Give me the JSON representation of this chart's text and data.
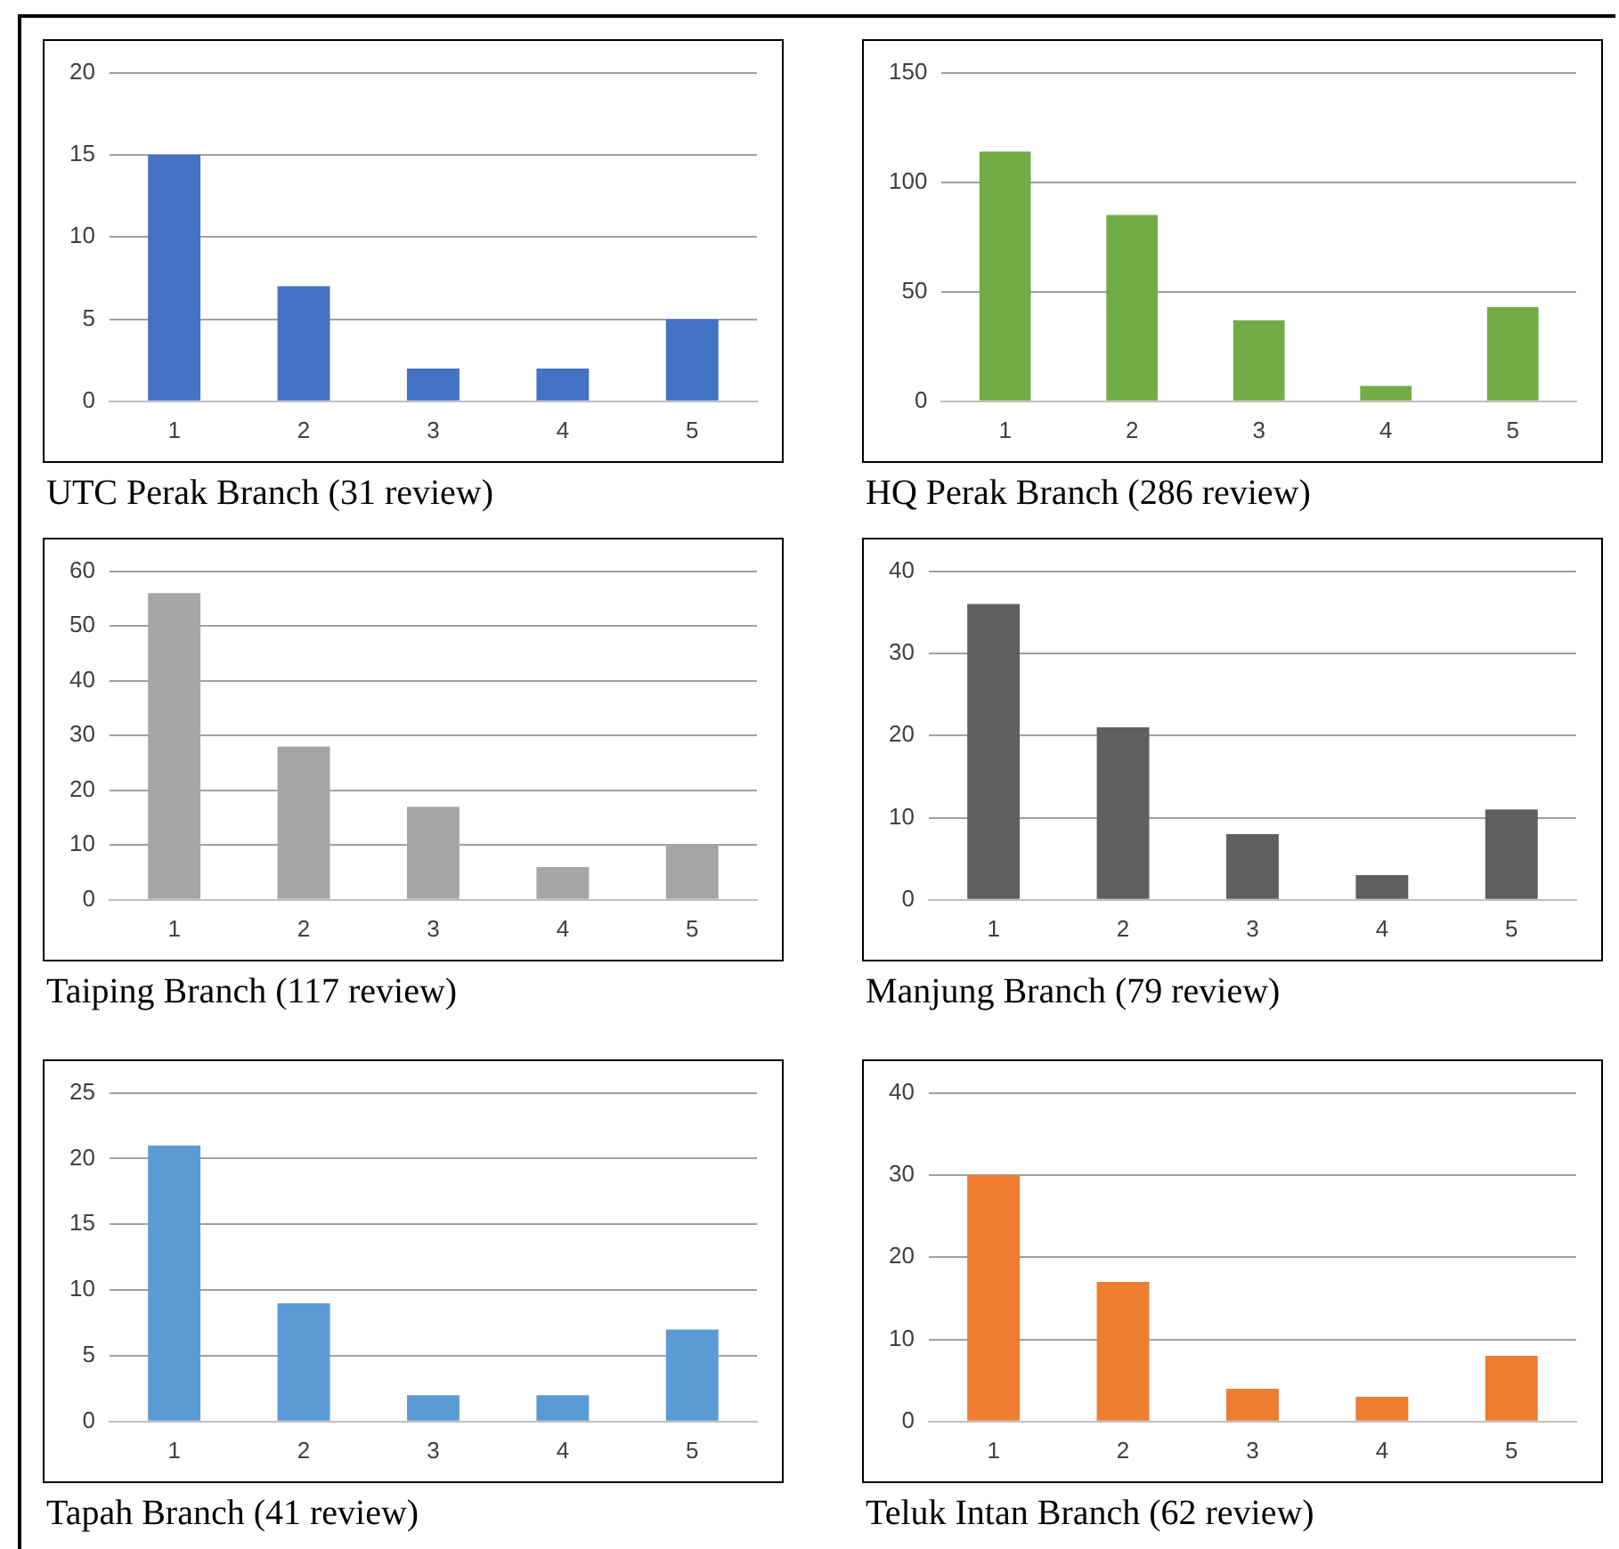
{
  "chart_data": [
    {
      "type": "bar",
      "title": "UTC Perak Branch (31 review)",
      "categories": [
        "1",
        "2",
        "3",
        "4",
        "5"
      ],
      "values": [
        15,
        7,
        2,
        2,
        5
      ],
      "color": "#4472c4",
      "ylim": [
        0,
        20
      ],
      "yticks": [
        0,
        5,
        10,
        15,
        20
      ],
      "grid": "y",
      "legend": false
    },
    {
      "type": "bar",
      "title": "HQ Perak Branch (286 review)",
      "categories": [
        "1",
        "2",
        "3",
        "4",
        "5"
      ],
      "values": [
        114,
        85,
        37,
        7,
        43
      ],
      "color": "#70ad47",
      "ylim": [
        0,
        150
      ],
      "yticks": [
        0,
        50,
        100,
        150
      ],
      "grid": "y",
      "legend": false
    },
    {
      "type": "bar",
      "title": "Taiping Branch (117 review)",
      "categories": [
        "1",
        "2",
        "3",
        "4",
        "5"
      ],
      "values": [
        56,
        28,
        17,
        6,
        10
      ],
      "color": "#a5a5a5",
      "ylim": [
        0,
        60
      ],
      "yticks": [
        0,
        10,
        20,
        30,
        40,
        50,
        60
      ],
      "grid": "y",
      "legend": false
    },
    {
      "type": "bar",
      "title": "Manjung Branch (79 review)",
      "categories": [
        "1",
        "2",
        "3",
        "4",
        "5"
      ],
      "values": [
        36,
        21,
        8,
        3,
        11
      ],
      "color": "#5f5f5f",
      "ylim": [
        0,
        40
      ],
      "yticks": [
        0,
        10,
        20,
        30,
        40
      ],
      "grid": "y",
      "legend": false
    },
    {
      "type": "bar",
      "title": "Tapah Branch (41 review)",
      "categories": [
        "1",
        "2",
        "3",
        "4",
        "5"
      ],
      "values": [
        21,
        9,
        2,
        2,
        7
      ],
      "color": "#5b9bd5",
      "ylim": [
        0,
        25
      ],
      "yticks": [
        0,
        5,
        10,
        15,
        20,
        25
      ],
      "grid": "y",
      "legend": false
    },
    {
      "type": "bar",
      "title": "Teluk Intan Branch (62 review)",
      "categories": [
        "1",
        "2",
        "3",
        "4",
        "5"
      ],
      "values": [
        30,
        17,
        4,
        3,
        8
      ],
      "color": "#ed7d31",
      "ylim": [
        0,
        40
      ],
      "yticks": [
        0,
        10,
        20,
        30,
        40
      ],
      "grid": "y",
      "legend": false
    }
  ]
}
